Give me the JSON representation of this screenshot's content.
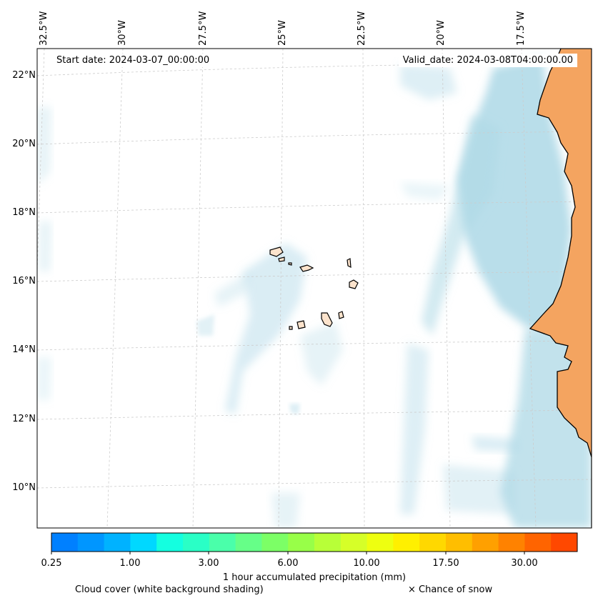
{
  "header": {
    "start_date": "Start date: 2024-03-07_00:00:00",
    "valid_date": "Valid_date: 2024-03-08T04:00:00.00"
  },
  "longitude_labels": [
    "32.5°W",
    "30°W",
    "27.5°W",
    "25°W",
    "22.5°W",
    "20°W",
    "17.5°W"
  ],
  "latitude_labels": [
    "22°N",
    "20°N",
    "18°N",
    "16°N",
    "14°N",
    "12°N",
    "10°N"
  ],
  "colorbar": {
    "colors": [
      "#0080ff",
      "#0096ff",
      "#00b2ff",
      "#00d8ff",
      "#14ffe0",
      "#2affc6",
      "#4affaa",
      "#66ff88",
      "#7cff66",
      "#98ff48",
      "#b8ff38",
      "#d6ff28",
      "#eeff10",
      "#fff000",
      "#ffd800",
      "#ffbe00",
      "#ffa000",
      "#ff8200",
      "#ff6400",
      "#ff4800"
    ],
    "tick_labels": [
      "0.25",
      "1.00",
      "3.00",
      "6.00",
      "10.00",
      "17.50",
      "30.00"
    ],
    "label": "1 hour accumulated precipitation (mm)"
  },
  "legend": {
    "cloud_cover": "Cloud cover (white background shading)",
    "snow": "× Chance of snow"
  },
  "colors": {
    "land": "#f4a460",
    "cloud": "#add8e6",
    "island_fill": "#fce3cc"
  }
}
